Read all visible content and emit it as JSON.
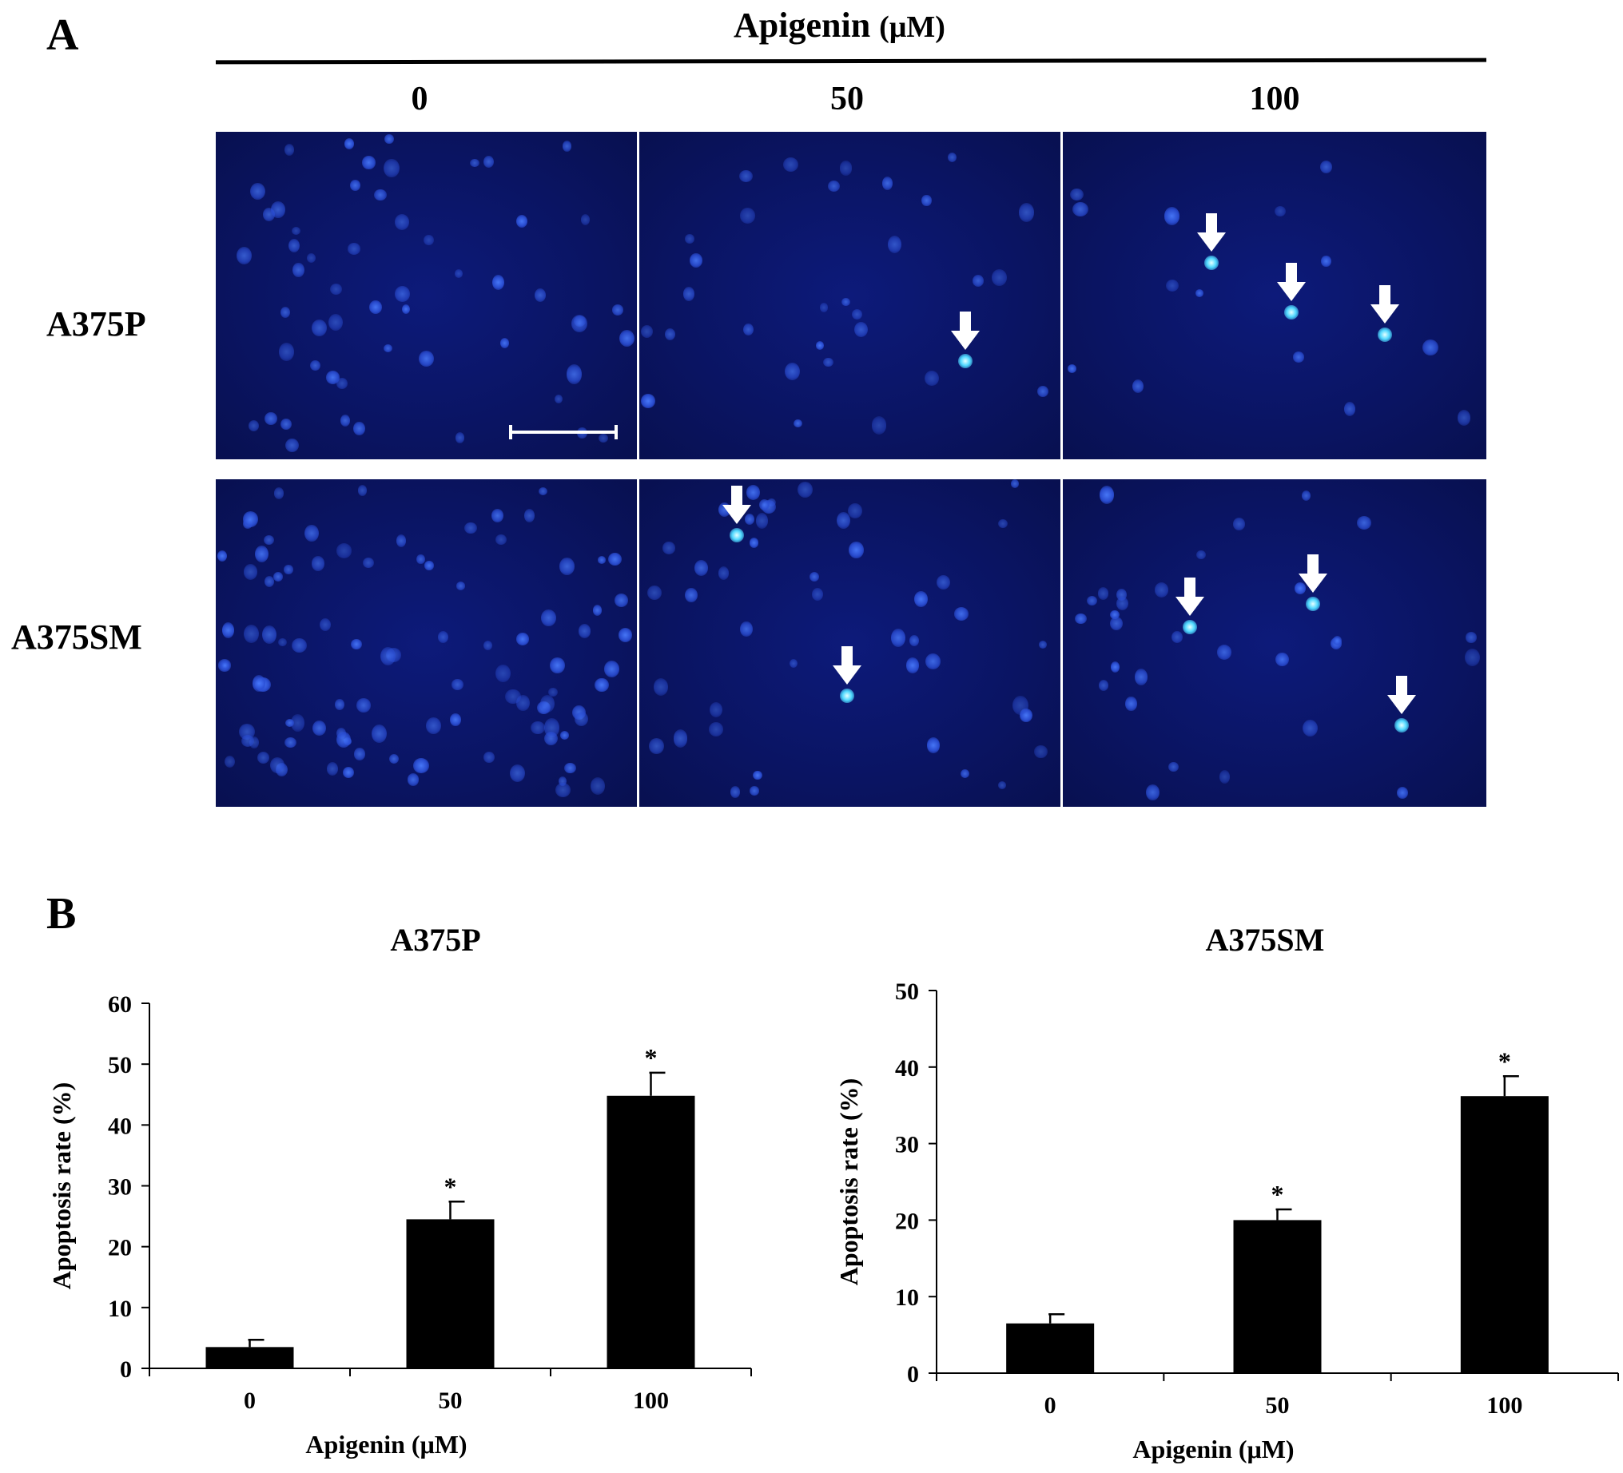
{
  "panel_a": {
    "letter": "A",
    "treatment_label": "Apigenin",
    "treatment_unit": "(μM)",
    "concentrations": [
      "0",
      "50",
      "100"
    ],
    "cell_lines": [
      "A375P",
      "A375SM"
    ],
    "scale_bar": true,
    "arrows_note_icon": "down-arrow-icon",
    "arrow_count": {
      "A375P": [
        0,
        1,
        3
      ],
      "A375SM": [
        0,
        2,
        3
      ]
    }
  },
  "panel_b": {
    "letter": "B"
  },
  "chart_data": [
    {
      "type": "bar",
      "title": "A375P",
      "xlabel": "Apigenin (μM)",
      "ylabel": "Apoptosis rate (%)",
      "categories": [
        "0",
        "50",
        "100"
      ],
      "values": [
        3.5,
        24.5,
        44.8
      ],
      "errors": [
        1.2,
        2.9,
        3.8
      ],
      "significance": [
        "",
        "*",
        "*"
      ],
      "ylim": [
        0,
        60
      ],
      "yticks": [
        "0",
        "10",
        "20",
        "30",
        "40",
        "50",
        "60"
      ],
      "bar_color": "#000000",
      "grid": false
    },
    {
      "type": "bar",
      "title": "A375SM",
      "xlabel": "Apigenin (μM)",
      "ylabel": "Apoptosis rate (%)",
      "categories": [
        "0",
        "50",
        "100"
      ],
      "values": [
        6.5,
        20.0,
        36.2
      ],
      "errors": [
        1.2,
        1.4,
        2.6
      ],
      "significance": [
        "",
        "*",
        "*"
      ],
      "ylim": [
        0,
        50
      ],
      "yticks": [
        "0",
        "10",
        "20",
        "30",
        "40",
        "50"
      ],
      "bar_color": "#000000",
      "grid": false
    }
  ]
}
